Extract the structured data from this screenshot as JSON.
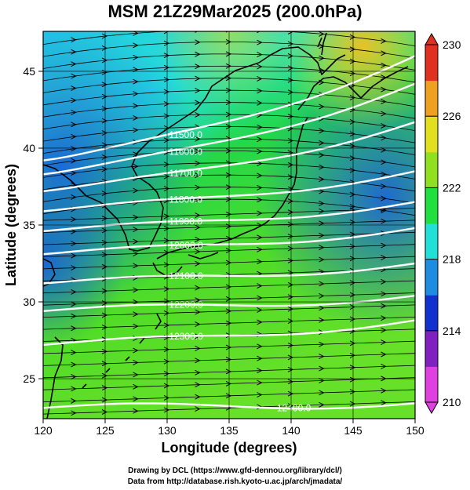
{
  "title": "MSM 21Z29Mar2025 (200.0hPa)",
  "credits": {
    "line1": "Drawing by DCL (https://www.gfd-dennou.org/library/dcl/)",
    "line2": "Data from http://database.rish.kyoto-u.ac.jp/arch/jmadata/"
  },
  "map": {
    "xlabel": "Longitude (degrees)",
    "ylabel": "Latitude  (degrees)",
    "lon_range": [
      120,
      150
    ],
    "lat_range": [
      22.4,
      47.6
    ],
    "lon_ticks": [
      "120",
      "125",
      "130",
      "135",
      "140",
      "145",
      "150"
    ],
    "lat_ticks": [
      "25",
      "30",
      "35",
      "40",
      "45"
    ],
    "contours": [
      {
        "label": "11500.0",
        "lat_west": 39.2,
        "lat_east": 46.0
      },
      {
        "label": "11600.0",
        "lat_west": 38.3,
        "lat_east": 44.2
      },
      {
        "label": "11700.0",
        "lat_west": 37.2,
        "lat_east": 41.7
      },
      {
        "label": "11800.0",
        "lat_west": 35.9,
        "lat_east": 38.5
      },
      {
        "label": "11900.0",
        "lat_west": 34.6,
        "lat_east": 36.5
      },
      {
        "label": "12000.0",
        "lat_west": 33.1,
        "lat_east": 34.8
      },
      {
        "label": "12100.0",
        "lat_west": 31.2,
        "lat_east": 32.5
      },
      {
        "label": "12200.0",
        "lat_west": 29.4,
        "lat_east": 30.4
      },
      {
        "label": "12300.0",
        "lat_west": 27.2,
        "lat_east": 28.8
      },
      {
        "label": "12400.0",
        "lat_west": 23.1,
        "lat_east": 23.4
      }
    ]
  },
  "colorbar": {
    "ticks": [
      "210",
      "214",
      "218",
      "222",
      "226",
      "230"
    ],
    "min": 210,
    "max": 230,
    "colors": [
      "#e040e0",
      "#8020c0",
      "#1030d0",
      "#1e8ce0",
      "#20e0d8",
      "#20e040",
      "#90e020",
      "#e0e020",
      "#f0a020",
      "#e03020"
    ]
  }
}
